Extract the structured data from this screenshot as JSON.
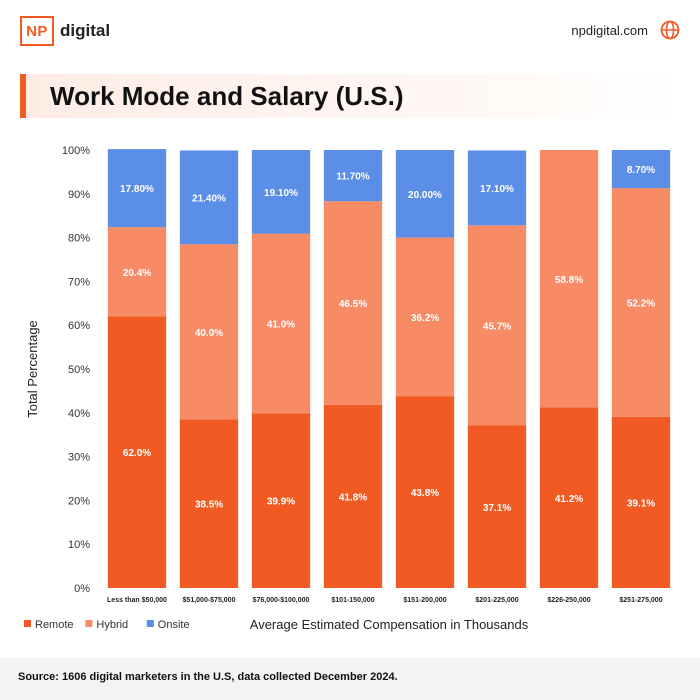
{
  "brand": {
    "logo_text": "NP",
    "name": "digital"
  },
  "site": {
    "url": "npdigital.com",
    "icon": "globe-icon"
  },
  "header": {
    "title": "Work Mode and Salary (U.S.)"
  },
  "colors": {
    "remote": "#f15a22",
    "hybrid": "#f68b66",
    "onsite": "#5b8ee6",
    "accent": "#f15a22"
  },
  "chart_data": {
    "type": "bar",
    "stacked": true,
    "xlabel": "Average Estimated Compensation in Thousands",
    "ylabel": "Total Percentage",
    "ylim": [
      0,
      100
    ],
    "yticks": [
      "0%",
      "10%",
      "20%",
      "30%",
      "40%",
      "50%",
      "60%",
      "70%",
      "80%",
      "90%",
      "100%"
    ],
    "legend_position": "bottom-left",
    "categories": [
      "Less than $50,000",
      "$51,000-$75,000",
      "$76,000-$100,000",
      "$101-150,000",
      "$151-200,000",
      "$201-225,000",
      "$226-250,000",
      "$251-275,000"
    ],
    "series": [
      {
        "name": "Remote",
        "values": [
          62.0,
          38.5,
          39.9,
          41.8,
          43.8,
          37.1,
          41.2,
          39.1
        ],
        "labels": [
          "62.0%",
          "38.5%",
          "39.9%",
          "41.8%",
          "43.8%",
          "37.1%",
          "41.2%",
          "39.1%"
        ]
      },
      {
        "name": "Hybrid",
        "values": [
          20.4,
          40.0,
          41.0,
          46.5,
          36.2,
          45.7,
          58.8,
          52.2
        ],
        "labels": [
          "20.4%",
          "40.0%",
          "41.0%",
          "46.5%",
          "36.2%",
          "45.7%",
          "58.8%",
          "52.2%"
        ]
      },
      {
        "name": "Onsite",
        "values": [
          17.8,
          21.4,
          19.1,
          11.7,
          20.0,
          17.1,
          0,
          8.7
        ],
        "labels": [
          "17.80%",
          "21.40%",
          "19.10%",
          "11.70%",
          "20.00%",
          "17.10%",
          "",
          "8.70%"
        ]
      }
    ]
  },
  "footer": {
    "source": "Source: 1606 digital marketers in the U.S, data collected December 2024."
  }
}
